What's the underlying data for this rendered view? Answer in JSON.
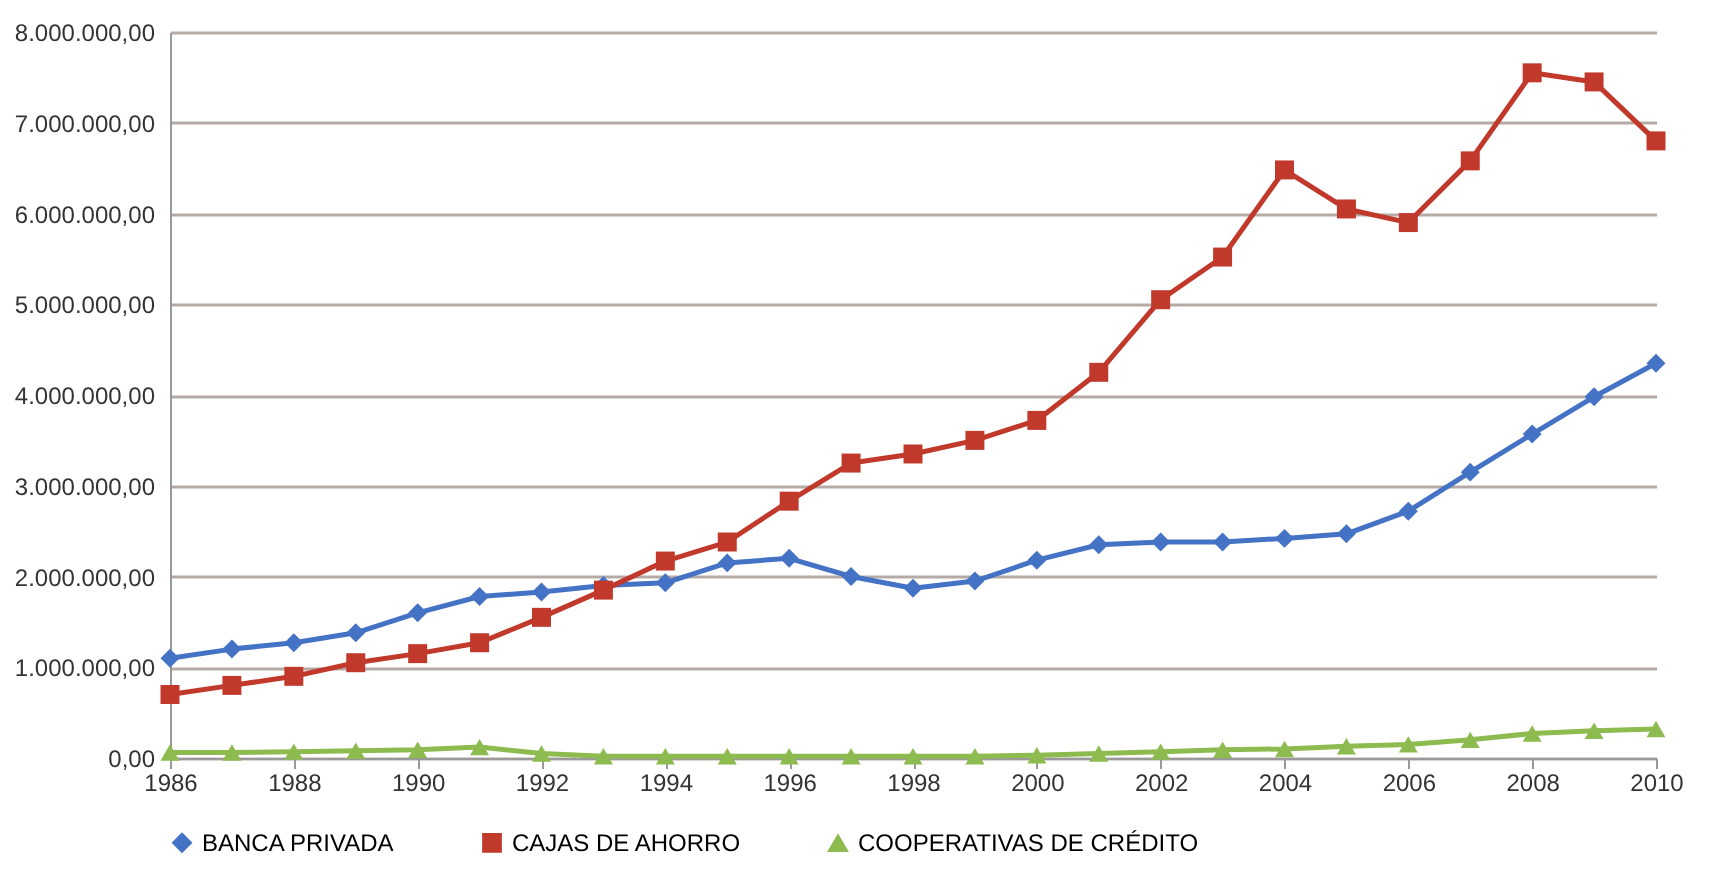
{
  "chart_data": {
    "type": "line",
    "x": [
      1986,
      1987,
      1988,
      1989,
      1990,
      1991,
      1992,
      1993,
      1994,
      1995,
      1996,
      1997,
      1998,
      1999,
      2000,
      2001,
      2002,
      2003,
      2004,
      2005,
      2006,
      2007,
      2008,
      2009,
      2010
    ],
    "series": [
      {
        "name": "BANCA PRIVADA",
        "color": "#4472c4",
        "marker": "diamond",
        "values": [
          1100000,
          1200000,
          1270000,
          1380000,
          1600000,
          1780000,
          1830000,
          1900000,
          1930000,
          2150000,
          2200000,
          2000000,
          1870000,
          1950000,
          2180000,
          2350000,
          2380000,
          2380000,
          2420000,
          2470000,
          2720000,
          3150000,
          3570000,
          3980000,
          4350000
        ]
      },
      {
        "name": "CAJAS DE AHORRO",
        "color": "#c0392b",
        "marker": "square",
        "values": [
          700000,
          800000,
          900000,
          1050000,
          1150000,
          1270000,
          1550000,
          1850000,
          2170000,
          2380000,
          2830000,
          3250000,
          3350000,
          3500000,
          3720000,
          4250000,
          5050000,
          5520000,
          6480000,
          6050000,
          5900000,
          6580000,
          7550000,
          7450000,
          6800000
        ]
      },
      {
        "name": "COOPERATIVAS DE CRÉDITO",
        "color": "#8dbb4f",
        "marker": "triangle",
        "values": [
          60000,
          60000,
          70000,
          80000,
          90000,
          120000,
          50000,
          20000,
          20000,
          20000,
          20000,
          20000,
          20000,
          20000,
          30000,
          50000,
          70000,
          90000,
          100000,
          130000,
          150000,
          200000,
          270000,
          300000,
          320000
        ]
      }
    ],
    "xlim": [
      1986,
      2010
    ],
    "xticks": [
      1986,
      1988,
      1990,
      1992,
      1994,
      1996,
      1998,
      2000,
      2002,
      2004,
      2006,
      2008,
      2010
    ],
    "ylim": [
      0,
      8000000
    ],
    "yticks": [
      {
        "value": 0,
        "label": "0,00"
      },
      {
        "value": 1000000,
        "label": "1.000.000,00"
      },
      {
        "value": 2000000,
        "label": "2.000.000,00"
      },
      {
        "value": 3000000,
        "label": "3.000.000,00"
      },
      {
        "value": 4000000,
        "label": "4.000.000,00"
      },
      {
        "value": 5000000,
        "label": "5.000.000,00"
      },
      {
        "value": 6000000,
        "label": "6.000.000,00"
      },
      {
        "value": 7000000,
        "label": "7.000.000,00"
      },
      {
        "value": 8000000,
        "label": "8.000.000,00"
      }
    ],
    "grid": "y",
    "legend": "bottom",
    "line_style": "solid"
  }
}
